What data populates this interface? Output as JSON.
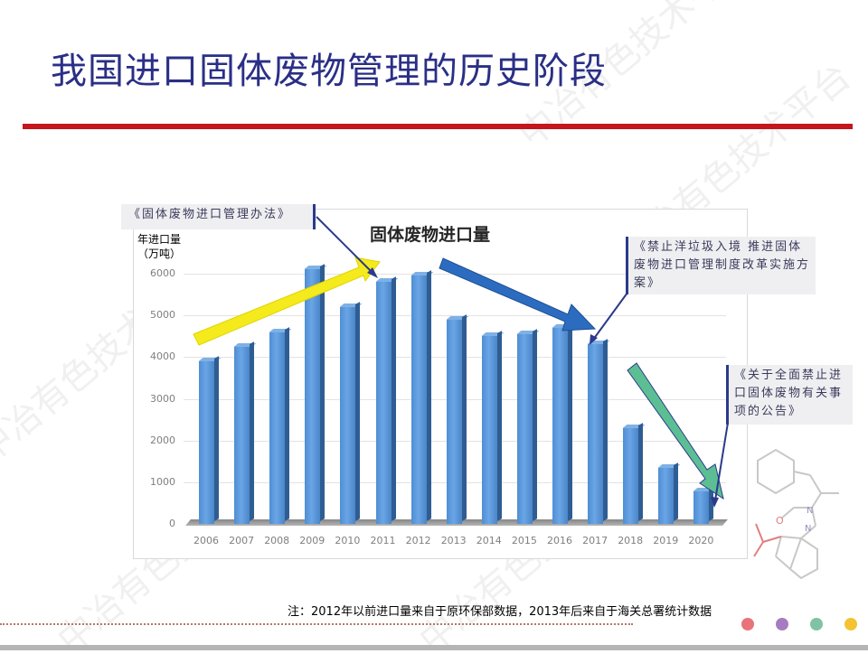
{
  "slide": {
    "title": "我国进口固体废物管理的历史阶段",
    "footnote": "注：2012年以前进口量来自于原环保部数据，2013年后来自于海关总署统计数据",
    "watermark": "中冶有色技术平台",
    "decor_dots": [
      "#e8737b",
      "#a77bc0",
      "#7fc3a3",
      "#f3c334"
    ],
    "colors": {
      "title": "#2a2f86",
      "rule": "#c4161c",
      "bar": "#5b9bd5",
      "up_arrow": "#f4ea1c",
      "down_arrow": "#2c6cc0",
      "green_arrow": "#5cbf94",
      "callout_line": "#2b3a8a"
    }
  },
  "callouts": [
    {
      "id": "c1",
      "text": "《固体废物进口管理办法》"
    },
    {
      "id": "c2",
      "text": "《禁止洋垃圾入境 推进固体废物进口管理制度改革实施方案》"
    },
    {
      "id": "c3",
      "text": "《关于全面禁止进口固体废物有关事项的公告》"
    }
  ],
  "chart_data": {
    "type": "bar",
    "title": "固体废物进口量",
    "xlabel": "",
    "ylabel": "年进口量（万吨）",
    "ylabel_line1": "年进口量",
    "ylabel_line2": "（万吨）",
    "ylim": [
      0,
      6000
    ],
    "yticks": [
      "0",
      "1000",
      "2000",
      "3000",
      "4000",
      "5000",
      "6000"
    ],
    "grid": true,
    "legend": "none",
    "categories": [
      "2006",
      "2007",
      "2008",
      "2009",
      "2010",
      "2011",
      "2012",
      "2013",
      "2014",
      "2015",
      "2016",
      "2017",
      "2018",
      "2019",
      "2020"
    ],
    "values": [
      3900,
      4250,
      4600,
      6100,
      5200,
      5800,
      5950,
      4900,
      4500,
      4550,
      4700,
      4300,
      2300,
      1350,
      780
    ],
    "annotations": [
      {
        "type": "arrow",
        "color": "yellow",
        "direction": "up",
        "span": "2006-2011"
      },
      {
        "type": "arrow",
        "color": "blue",
        "direction": "down",
        "span": "2012-2017"
      },
      {
        "type": "arrow",
        "color": "green",
        "direction": "down",
        "span": "2018-2020"
      }
    ]
  }
}
